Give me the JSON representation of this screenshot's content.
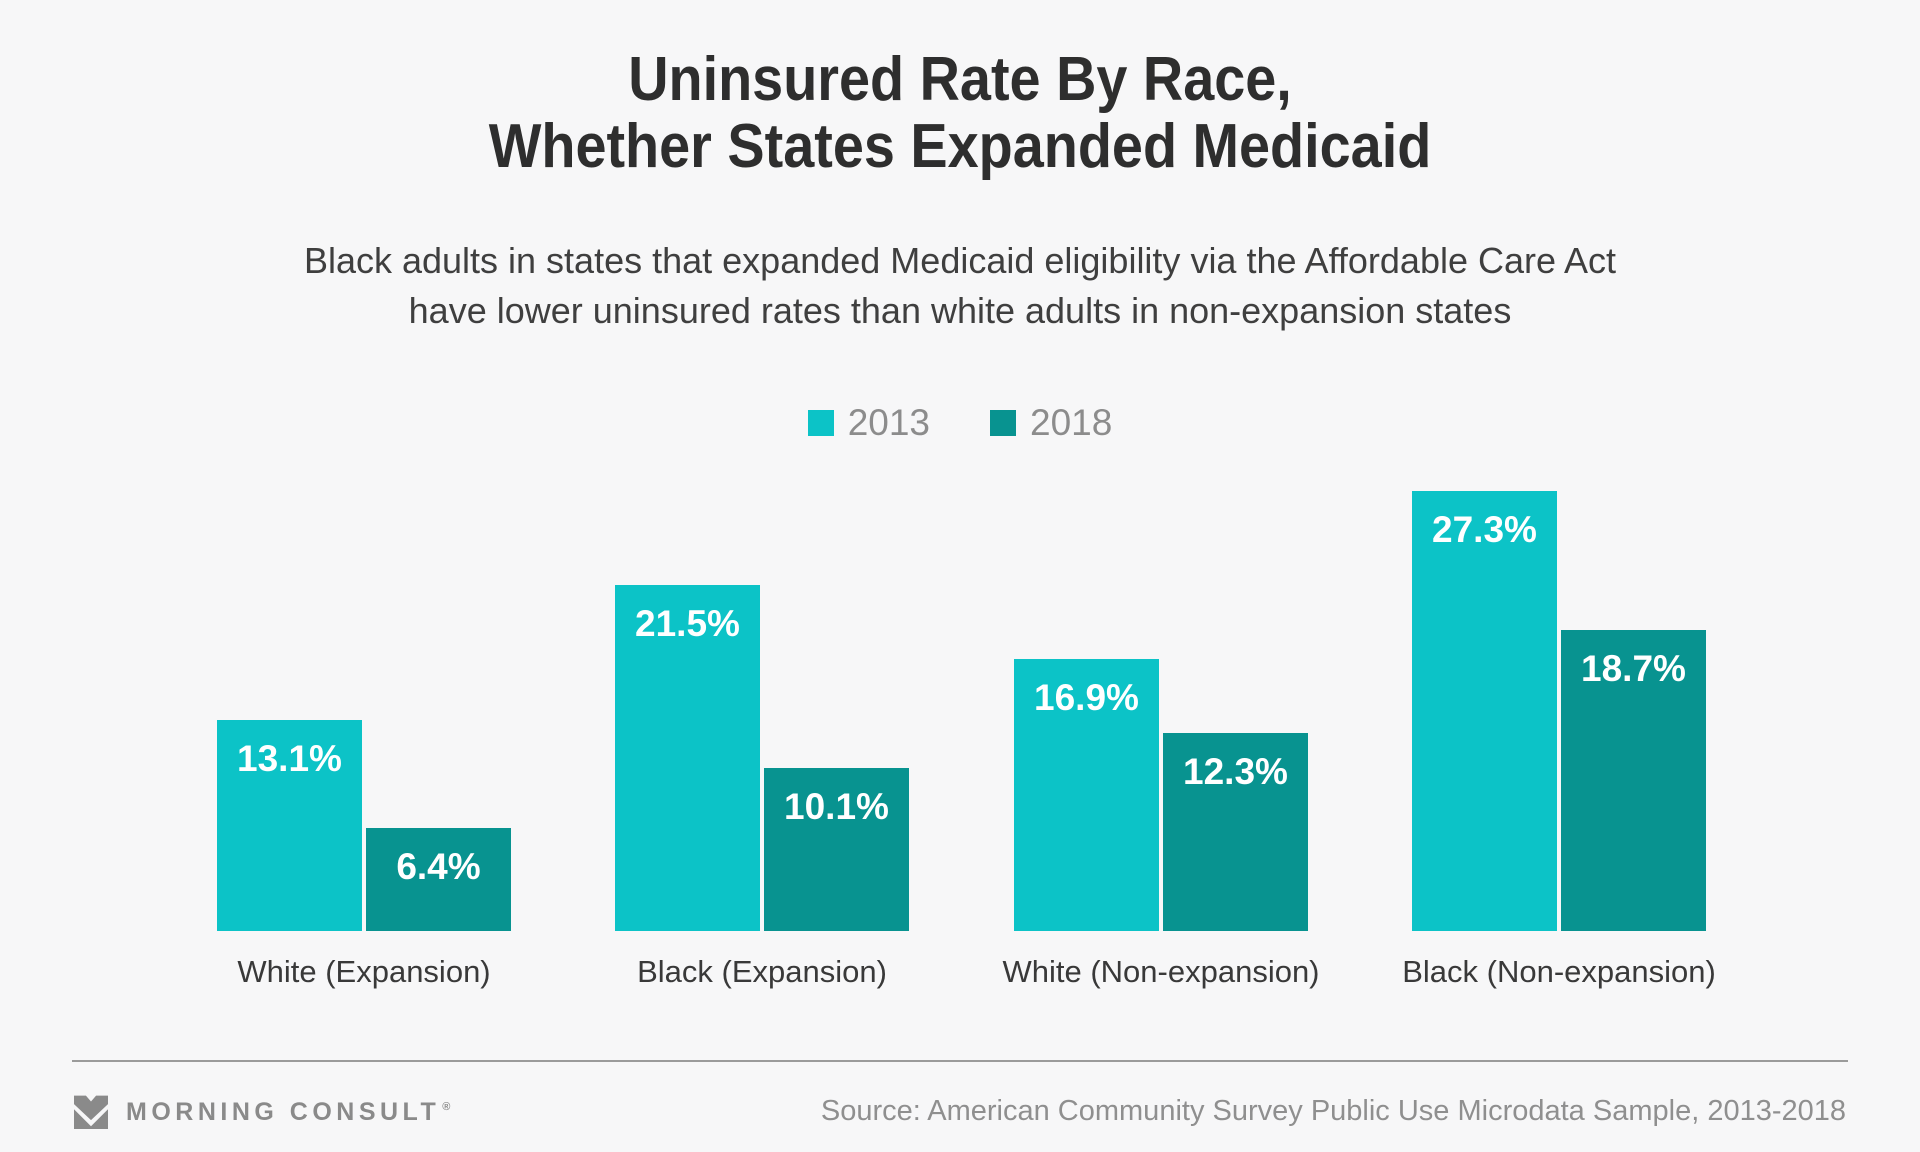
{
  "page": {
    "background": "#f7f7f8"
  },
  "header": {
    "title_line1": "Uninsured Rate By Race,",
    "title_line2": "Whether States Expanded Medicaid",
    "subtitle_line1": "Black adults in states that expanded Medicaid eligibility via the Affordable Care Act",
    "subtitle_line2": "have lower uninsured rates than white adults in non-expansion states"
  },
  "chart_data": {
    "type": "bar",
    "title": "Uninsured Rate By Race, Whether States Expanded Medicaid",
    "categories": [
      "White (Expansion)",
      "Black (Expansion)",
      "White (Non-expansion)",
      "Black (Non-expansion)"
    ],
    "series": [
      {
        "name": "2013",
        "color": "#0cc3c7",
        "values": [
          13.1,
          21.5,
          16.9,
          27.3
        ]
      },
      {
        "name": "2018",
        "color": "#089390",
        "values": [
          6.4,
          10.1,
          12.3,
          18.7
        ]
      }
    ],
    "value_suffix": "%",
    "value_labels": "inside-top-white-bold",
    "xlabel": "",
    "ylabel": "",
    "ylim": [
      0,
      30
    ],
    "grid": false,
    "axes_shown": false,
    "legend_position": "top-center"
  },
  "footer": {
    "brand_mark_icon": "morning-consult-m-logo",
    "brand": "MORNING CONSULT",
    "registered": "®",
    "source": "Source: American Community Survey Public Use Microdata Sample, 2013-2018"
  }
}
